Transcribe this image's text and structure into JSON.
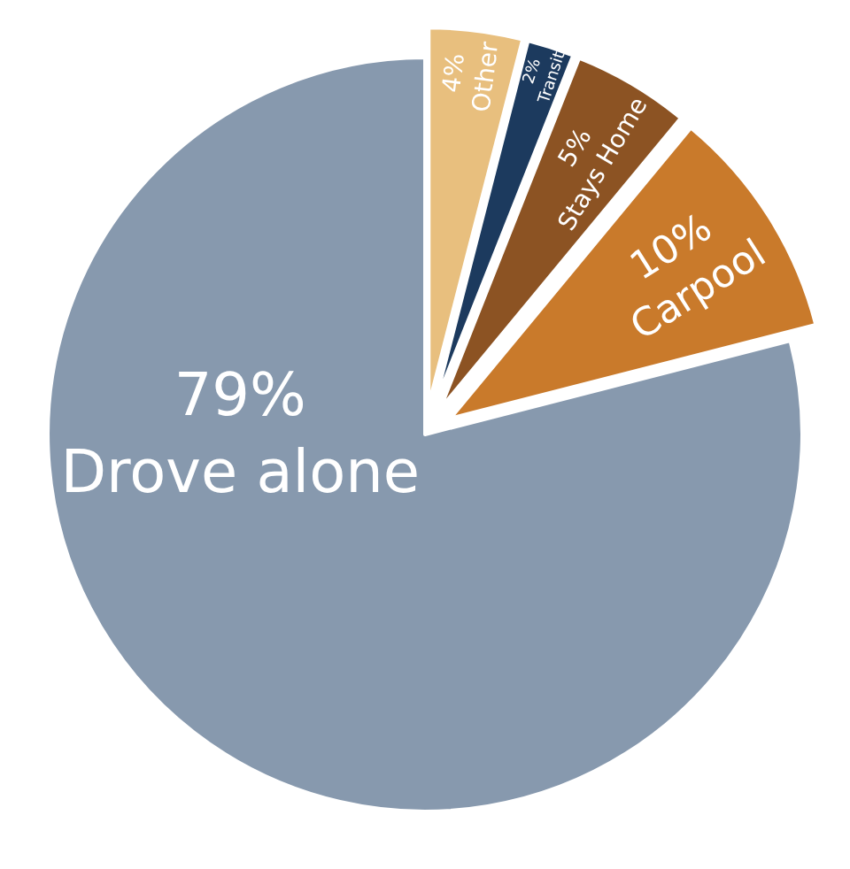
{
  "chart_data": {
    "type": "pie",
    "categories": [
      "Other",
      "Transit",
      "Stays Home",
      "Carpool",
      "Drove alone"
    ],
    "values": [
      4,
      2,
      5,
      10,
      79
    ],
    "value_labels": [
      "4%",
      "2%",
      "5%",
      "10%",
      "79%"
    ],
    "colors": [
      "#e8bf7e",
      "#1c3a5e",
      "#8c5323",
      "#c97a2b",
      "#8799ae"
    ],
    "legend": false
  }
}
